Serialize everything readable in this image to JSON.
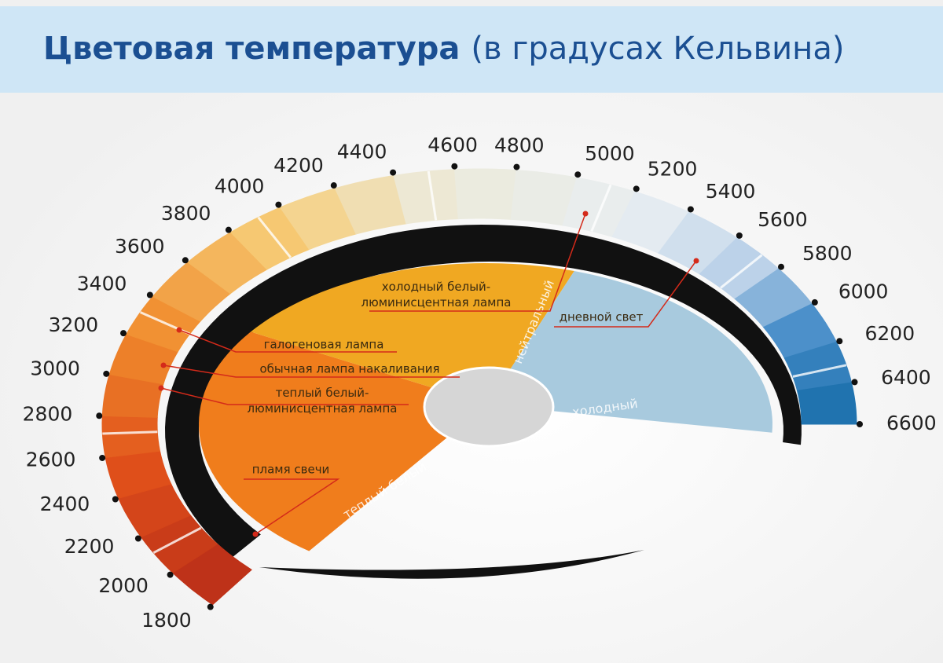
{
  "header": {
    "title_bold": "Цветовая температура",
    "title_rest": "(в градусах Кельвина)"
  },
  "scale": {
    "ticks": [
      1800,
      2000,
      2200,
      2400,
      2600,
      2800,
      3000,
      3200,
      3400,
      3600,
      3800,
      4000,
      4200,
      4400,
      4600,
      4800,
      5000,
      5200,
      5400,
      5600,
      5800,
      6000,
      6200,
      6400,
      6600
    ]
  },
  "sectors": {
    "warm": "теплый белый",
    "neutral": "нейтральный",
    "cold": "холодный"
  },
  "annotations": {
    "cold_white_lamp": [
      "холодный белый-",
      "люминисцентная лампа"
    ],
    "daylight": "дневной свет",
    "halogen": "галогеновая лампа",
    "incandescent": "обычная лампа накаливания",
    "warm_white_lamp": [
      "теплый белый-",
      "люминисцентная лампа"
    ],
    "candle": "пламя свечи"
  }
}
